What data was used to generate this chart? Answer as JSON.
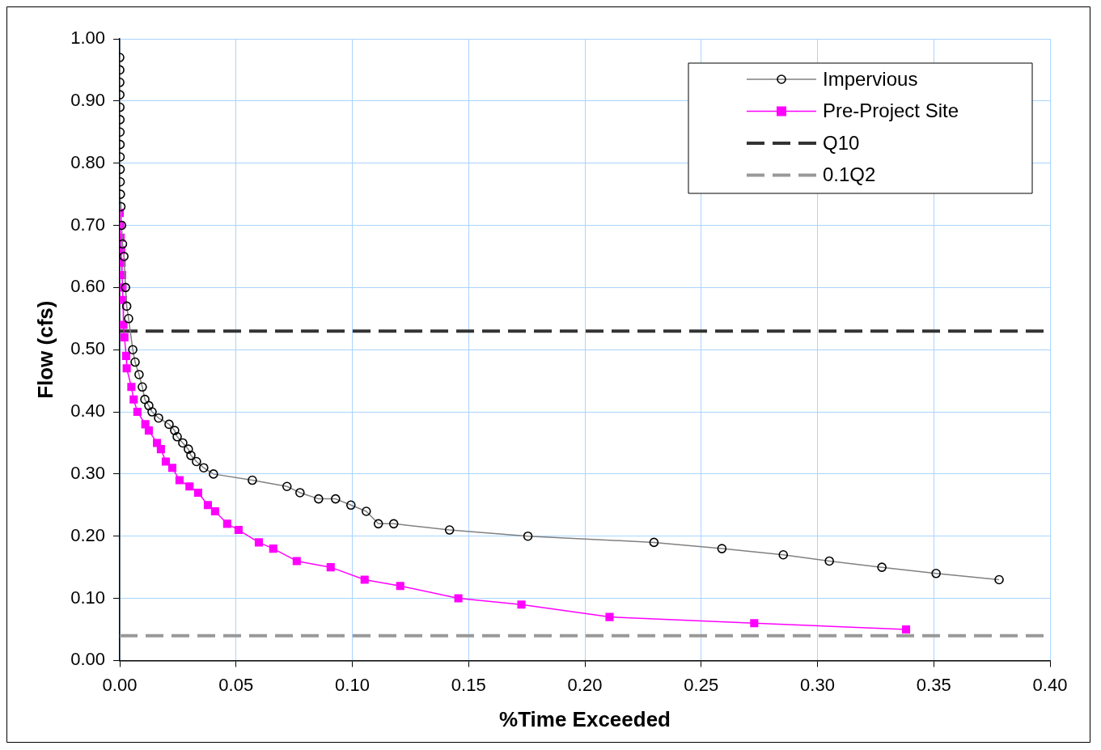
{
  "chart_data": {
    "type": "line",
    "xlabel": "%Time Exceeded",
    "ylabel": "Flow (cfs)",
    "xlim": [
      0,
      0.4
    ],
    "xticks": [
      {
        "value": 0,
        "label": "0.00"
      },
      {
        "value": 0.05,
        "label": "0.05"
      },
      {
        "value": 0.1,
        "label": "0.10"
      },
      {
        "value": 0.15,
        "label": "0.15"
      },
      {
        "value": 0.2,
        "label": "0.20"
      },
      {
        "value": 0.25,
        "label": "0.25"
      },
      {
        "value": 0.3,
        "label": "0.30"
      },
      {
        "value": 0.35,
        "label": "0.35"
      },
      {
        "value": 0.4,
        "label": "0.40"
      }
    ],
    "ylim": [
      0,
      1
    ],
    "yticks": [
      {
        "value": 0,
        "label": "0.00"
      },
      {
        "value": 0.1,
        "label": "0.10"
      },
      {
        "value": 0.2,
        "label": "0.20"
      },
      {
        "value": 0.3,
        "label": "0.30"
      },
      {
        "value": 0.4,
        "label": "0.40"
      },
      {
        "value": 0.5,
        "label": "0.50"
      },
      {
        "value": 0.6,
        "label": "0.60"
      },
      {
        "value": 0.7,
        "label": "0.70"
      },
      {
        "value": 0.8,
        "label": "0.80"
      },
      {
        "value": 0.9,
        "label": "0.90"
      },
      {
        "value": 1,
        "label": "1.00"
      }
    ],
    "grid": true,
    "legend": "top right",
    "line_style": "solid",
    "series": [
      {
        "name": "Impervious",
        "color": "#808080",
        "marker": "circle",
        "x": [
          0,
          2e-05,
          4e-05,
          6e-05,
          8e-05,
          0.0001,
          0.00012,
          0.00014,
          0.00016,
          0.00018,
          0.0002,
          0.0003,
          0.0005,
          0.0008,
          0.0012,
          0.0018,
          0.0025,
          0.003,
          0.0038,
          0.0056,
          0.0066,
          0.0083,
          0.0097,
          0.0108,
          0.0125,
          0.0139,
          0.0167,
          0.0212,
          0.0236,
          0.0247,
          0.0271,
          0.0295,
          0.0306,
          0.033,
          0.0361,
          0.0403,
          0.057,
          0.0719,
          0.0775,
          0.0855,
          0.0928,
          0.0994,
          0.106,
          0.1112,
          0.1178,
          0.1418,
          0.1755,
          0.2297,
          0.2589,
          0.2853,
          0.3051,
          0.3277,
          0.351,
          0.3781
        ],
        "values": [
          0.97,
          0.95,
          0.93,
          0.91,
          0.89,
          0.87,
          0.85,
          0.83,
          0.81,
          0.79,
          0.77,
          0.75,
          0.73,
          0.7,
          0.67,
          0.65,
          0.6,
          0.57,
          0.55,
          0.5,
          0.48,
          0.46,
          0.44,
          0.42,
          0.41,
          0.4,
          0.39,
          0.38,
          0.37,
          0.36,
          0.35,
          0.34,
          0.33,
          0.32,
          0.31,
          0.3,
          0.29,
          0.28,
          0.27,
          0.26,
          0.26,
          0.25,
          0.24,
          0.22,
          0.22,
          0.21,
          0.2,
          0.19,
          0.18,
          0.17,
          0.16,
          0.15,
          0.14,
          0.13
        ]
      },
      {
        "name": "Pre-Project Site",
        "color": "#ff00ff",
        "marker": "square",
        "x": [
          0,
          0.0002,
          0.0004,
          0.0006,
          0.0008,
          0.001,
          0.0012,
          0.0014,
          0.0016,
          0.002,
          0.0028,
          0.003,
          0.005,
          0.006,
          0.0076,
          0.011,
          0.0125,
          0.016,
          0.0177,
          0.0198,
          0.0226,
          0.0257,
          0.03,
          0.0337,
          0.0379,
          0.041,
          0.0462,
          0.0511,
          0.0598,
          0.066,
          0.0761,
          0.0907,
          0.1053,
          0.1206,
          0.1456,
          0.1727,
          0.2106,
          0.2728,
          0.3381
        ],
        "values": [
          0.72,
          0.7,
          0.68,
          0.66,
          0.64,
          0.62,
          0.6,
          0.58,
          0.54,
          0.52,
          0.49,
          0.47,
          0.44,
          0.42,
          0.4,
          0.38,
          0.37,
          0.35,
          0.34,
          0.32,
          0.31,
          0.29,
          0.28,
          0.27,
          0.25,
          0.24,
          0.22,
          0.21,
          0.19,
          0.18,
          0.16,
          0.15,
          0.13,
          0.12,
          0.1,
          0.09,
          0.07,
          0.06,
          0.05
        ]
      }
    ],
    "ref_lines": [
      {
        "axis": "y",
        "value": 0.53,
        "label": "Q10",
        "color": "#333333",
        "line_style": "dashed"
      },
      {
        "axis": "y",
        "value": 0.04,
        "label": "0.1Q2",
        "color": "#999999",
        "line_style": "dashed"
      }
    ]
  }
}
